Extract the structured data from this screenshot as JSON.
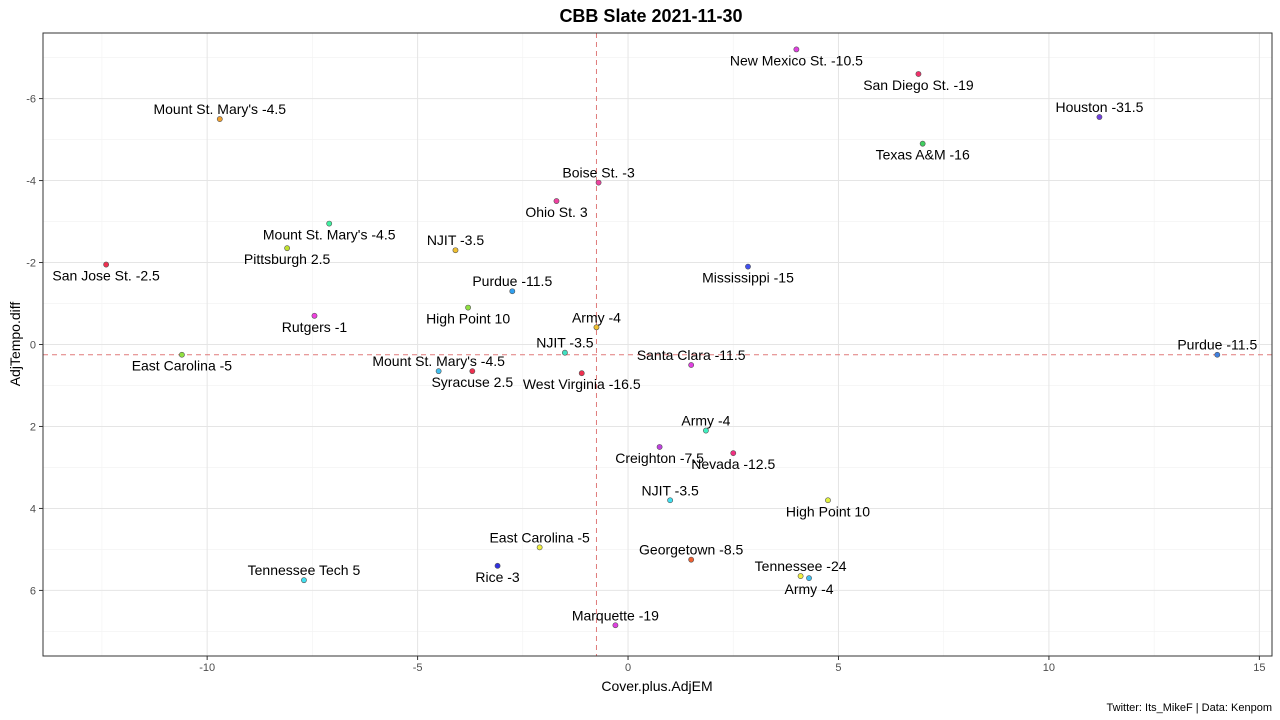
{
  "chart_data": {
    "type": "scatter",
    "title": "CBB Slate 2021-11-30",
    "xlabel": "Cover.plus.AdjEM",
    "ylabel": "AdjTempo.diff",
    "caption": "Twitter: Its_MikeF | Data: Kenpom",
    "xlim": [
      -13.9,
      15.3
    ],
    "ylim": [
      -7.6,
      7.6
    ],
    "y_reversed": true,
    "grid": true,
    "x_ticks": [
      -10,
      -5,
      0,
      5,
      10,
      15
    ],
    "y_ticks": [
      -6,
      -4,
      -2,
      0,
      2,
      4,
      6
    ],
    "x_tick_labels": [
      "-10",
      "-5",
      "0",
      "5",
      "10",
      "15"
    ],
    "y_tick_labels": [
      "-6",
      "-4",
      "-2",
      "0",
      "2",
      "4",
      "6"
    ],
    "reference_lines": {
      "x": -0.75,
      "y": 0.25
    },
    "points": [
      {
        "label": "New Mexico St. -10.5",
        "x": 4.0,
        "y": -7.2,
        "color": "#e040e0",
        "label_pos": "below"
      },
      {
        "label": "San Diego St. -19",
        "x": 6.9,
        "y": -6.6,
        "color": "#f0306a",
        "label_pos": "below"
      },
      {
        "label": "Houston -31.5",
        "x": 11.2,
        "y": -5.55,
        "color": "#7040e0",
        "label_pos": "above"
      },
      {
        "label": "Mount St. Mary's -4.5",
        "x": -9.7,
        "y": -5.5,
        "color": "#f0a030",
        "label_pos": "above"
      },
      {
        "label": "Texas A&M -16",
        "x": 7.0,
        "y": -4.9,
        "color": "#40d060",
        "label_pos": "below"
      },
      {
        "label": "Boise St. -3",
        "x": -0.7,
        "y": -3.95,
        "color": "#f040a0",
        "label_pos": "above"
      },
      {
        "label": "Ohio St. 3",
        "x": -1.7,
        "y": -3.5,
        "color": "#f040a0",
        "label_pos": "below"
      },
      {
        "label": "Mount St. Mary's -4.5",
        "x": -7.1,
        "y": -2.95,
        "color": "#40f0a0",
        "label_pos": "below"
      },
      {
        "label": "NJIT -3.5",
        "x": -4.1,
        "y": -2.3,
        "color": "#f0c030",
        "label_pos": "above"
      },
      {
        "label": "Pittsburgh 2.5",
        "x": -8.1,
        "y": -2.35,
        "color": "#c0e030",
        "label_pos": "below"
      },
      {
        "label": "San Jose St. -2.5",
        "x": -12.4,
        "y": -1.95,
        "color": "#f03050",
        "label_pos": "below"
      },
      {
        "label": "Mississippi -15",
        "x": 2.85,
        "y": -1.9,
        "color": "#4050f0",
        "label_pos": "below"
      },
      {
        "label": "Purdue -11.5",
        "x": -2.75,
        "y": -1.3,
        "color": "#30a0f0",
        "label_pos": "above"
      },
      {
        "label": "Rutgers -1",
        "x": -7.45,
        "y": -0.7,
        "color": "#f040e0",
        "label_pos": "below"
      },
      {
        "label": "High Point 10",
        "x": -3.8,
        "y": -0.9,
        "color": "#90e040",
        "label_pos": "below"
      },
      {
        "label": "Army -4",
        "x": -0.75,
        "y": -0.42,
        "color": "#f0c030",
        "label_pos": "above"
      },
      {
        "label": "NJIT -3.5",
        "x": -1.5,
        "y": 0.2,
        "color": "#40e0c0",
        "label_pos": "above"
      },
      {
        "label": "East Carolina -5",
        "x": -10.6,
        "y": 0.25,
        "color": "#90e040",
        "label_pos": "below"
      },
      {
        "label": "Purdue -11.5",
        "x": 14.0,
        "y": 0.25,
        "color": "#4080e0",
        "label_pos": "above"
      },
      {
        "label": "Mount St. Mary's -4.5",
        "x": -4.5,
        "y": 0.65,
        "color": "#40c0f0",
        "label_pos": "above"
      },
      {
        "label": "Santa Clara -11.5",
        "x": 1.5,
        "y": 0.5,
        "color": "#e040e0",
        "label_pos": "above"
      },
      {
        "label": "Syracuse 2.5",
        "x": -3.7,
        "y": 0.65,
        "color": "#f03050",
        "label_pos": "below"
      },
      {
        "label": "West Virginia -16.5",
        "x": -1.1,
        "y": 0.7,
        "color": "#f03050",
        "label_pos": "below"
      },
      {
        "label": "Army -4",
        "x": 1.85,
        "y": 2.1,
        "color": "#40f0c0",
        "label_pos": "above"
      },
      {
        "label": "Creighton -7.5",
        "x": 0.75,
        "y": 2.5,
        "color": "#c040e0",
        "label_pos": "below"
      },
      {
        "label": "Nevada -12.5",
        "x": 2.5,
        "y": 2.65,
        "color": "#f03080",
        "label_pos": "below"
      },
      {
        "label": "NJIT -3.5",
        "x": 1.0,
        "y": 3.8,
        "color": "#40e0f0",
        "label_pos": "above"
      },
      {
        "label": "High Point 10",
        "x": 4.75,
        "y": 3.8,
        "color": "#e0f040",
        "label_pos": "below"
      },
      {
        "label": "East Carolina -5",
        "x": -2.1,
        "y": 4.95,
        "color": "#f0f040",
        "label_pos": "above"
      },
      {
        "label": "Georgetown -8.5",
        "x": 1.5,
        "y": 5.25,
        "color": "#f06030",
        "label_pos": "above"
      },
      {
        "label": "Rice -3",
        "x": -3.1,
        "y": 5.4,
        "color": "#3030e0",
        "label_pos": "below"
      },
      {
        "label": "Tennessee Tech 5",
        "x": -7.7,
        "y": 5.75,
        "color": "#40e0f0",
        "label_pos": "above"
      },
      {
        "label": "Tennessee -24",
        "x": 4.1,
        "y": 5.65,
        "color": "#f0f040",
        "label_pos": "above"
      },
      {
        "label": "Army -4",
        "x": 4.3,
        "y": 5.7,
        "color": "#40c0f0",
        "label_pos": "below"
      },
      {
        "label": "Marquette -19",
        "x": -0.3,
        "y": 6.85,
        "color": "#e040e0",
        "label_pos": "above"
      }
    ]
  }
}
